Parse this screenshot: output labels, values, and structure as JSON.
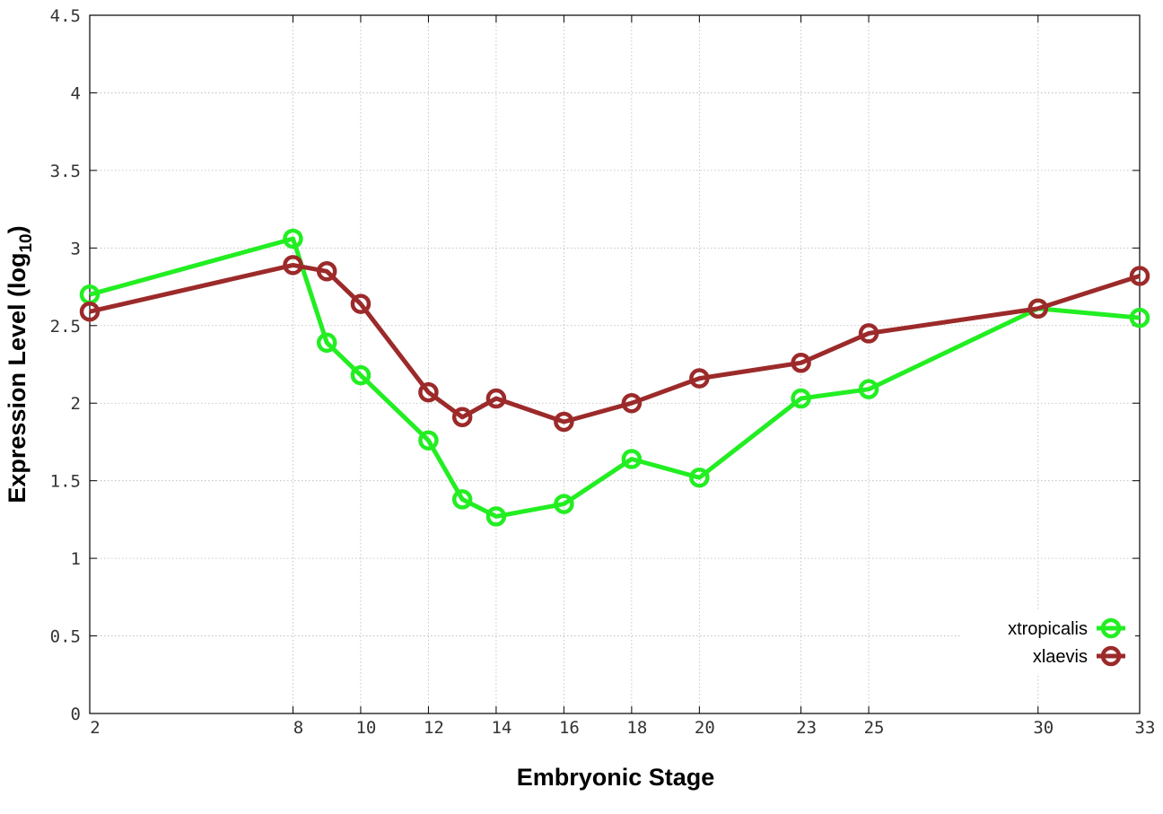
{
  "chart_data": {
    "type": "line",
    "title": "",
    "xlabel": "Embryonic Stage",
    "ylabel_main": "Expression Level (log",
    "ylabel_sub": "10",
    "ylabel_close": ")",
    "x_ticks": [
      "2",
      "8",
      "10",
      "12",
      "14",
      "16",
      "18",
      "20",
      "23",
      "25",
      "30",
      "33"
    ],
    "y_ticks": [
      "0",
      "0.5",
      "1",
      "1.5",
      "2",
      "2.5",
      "3",
      "3.5",
      "4",
      "4.5"
    ],
    "xlim": [
      2,
      33
    ],
    "ylim": [
      0,
      4.5
    ],
    "grid": true,
    "legend_position": "bottom-right",
    "x": [
      2,
      8,
      9,
      10,
      12,
      13,
      14,
      16,
      18,
      20,
      23,
      25,
      30,
      33
    ],
    "series": [
      {
        "name": "xtropicalis",
        "color": "#22ee22",
        "values": [
          2.7,
          3.06,
          2.39,
          2.18,
          1.76,
          1.38,
          1.27,
          1.35,
          1.64,
          1.52,
          2.03,
          2.09,
          2.61,
          2.55
        ]
      },
      {
        "name": "xlaevis",
        "color": "#9c2a2a",
        "values": [
          2.59,
          2.89,
          2.85,
          2.64,
          2.07,
          1.91,
          2.03,
          1.88,
          2.0,
          2.16,
          2.26,
          2.45,
          2.61,
          2.82
        ]
      }
    ]
  }
}
